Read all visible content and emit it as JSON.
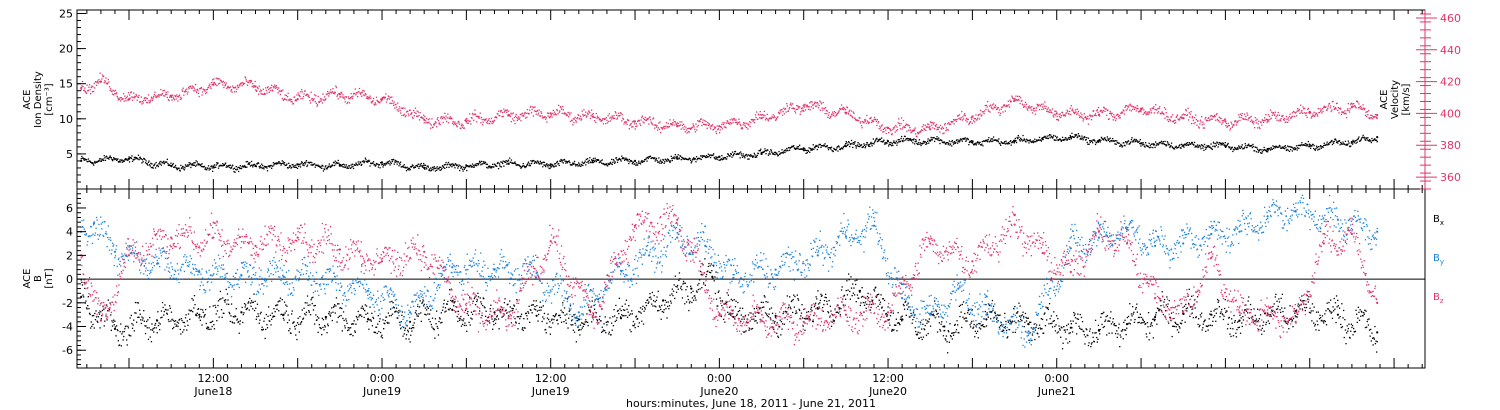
{
  "colors": {
    "black": "#000000",
    "pink": "#e0356a",
    "blue": "#1b83e0"
  },
  "chart_data": [
    {
      "type": "scatter",
      "panel": "top",
      "ylabel_lines": [
        "ACE",
        "Ion Density",
        "[cm⁻³]"
      ],
      "y2label_lines": [
        "ACE",
        "Velocity",
        "[km/s]"
      ],
      "xlim": [
        2.3,
        98.2
      ],
      "ylim": [
        0,
        25.5
      ],
      "y2lim": [
        352.5,
        465
      ],
      "yticks": [
        5,
        10,
        15,
        20,
        25
      ],
      "y2ticks": [
        360,
        380,
        400,
        420,
        440,
        460
      ],
      "series": [
        {
          "color": "#000000",
          "axis": "left",
          "x": [
            2.6,
            6,
            9,
            12,
            15,
            18,
            21,
            24,
            27,
            30,
            33,
            36,
            39,
            42,
            45,
            48,
            51,
            54,
            57,
            60,
            63,
            66,
            69,
            71,
            73,
            75,
            78,
            81,
            84,
            87,
            90,
            93,
            94.8
          ],
          "y": [
            4.0,
            4.3,
            3.3,
            3.2,
            3.3,
            3.5,
            3.3,
            3.8,
            3.0,
            3.3,
            3.6,
            3.5,
            3.8,
            4.0,
            4.3,
            4.6,
            5.0,
            5.8,
            6.1,
            6.8,
            6.9,
            6.7,
            6.8,
            7.1,
            7.4,
            6.9,
            6.5,
            6.2,
            6.1,
            5.7,
            6.1,
            6.7,
            7.4
          ]
        },
        {
          "color": "#e0356a",
          "axis": "right",
          "x": [
            2.6,
            4,
            6,
            9,
            12,
            15,
            18,
            21,
            24,
            27,
            30,
            33,
            36,
            39,
            42,
            45,
            48,
            51,
            54,
            57,
            60,
            63,
            66,
            69,
            72,
            75,
            78,
            81,
            84,
            87,
            90,
            93,
            94.8
          ],
          "y": [
            416,
            420,
            409,
            411,
            418,
            417,
            409,
            412,
            409,
            396,
            395,
            399,
            400,
            398,
            395,
            392,
            392,
            397,
            405,
            400,
            391,
            390,
            398,
            408,
            400,
            399,
            403,
            397,
            395,
            396,
            401,
            404,
            399
          ]
        }
      ]
    },
    {
      "type": "scatter",
      "panel": "bottom",
      "ylabel_lines": [
        "ACE",
        "B",
        "[nT]"
      ],
      "xlim": [
        2.3,
        98.2
      ],
      "ylim": [
        -7.5,
        7.6
      ],
      "yticks": [
        -6,
        -4,
        -2,
        0,
        2,
        4,
        6
      ],
      "zero_line": true,
      "xticks": [
        {
          "x": 12,
          "time": "12:00",
          "date": "June18"
        },
        {
          "x": 24,
          "time": "0:00",
          "date": "June19"
        },
        {
          "x": 36,
          "time": "12:00",
          "date": "June19"
        },
        {
          "x": 48,
          "time": "0:00",
          "date": "June20"
        },
        {
          "x": 60,
          "time": "12:00",
          "date": "June20"
        },
        {
          "x": 72,
          "time": "0:00",
          "date": "June21"
        }
      ],
      "xlabel": "hours:minutes, June 18, 2011 - June 21, 2011",
      "series": [
        {
          "color": "#000000",
          "name_base": "B",
          "name_sub": "x",
          "x": [
            2.6,
            5,
            8,
            11,
            14,
            17,
            20,
            23,
            26,
            29,
            32,
            35,
            38,
            41,
            44,
            46,
            47.5,
            49,
            52,
            55,
            58,
            61,
            64,
            67,
            70,
            73,
            75,
            77,
            79,
            81,
            83,
            85,
            87,
            89,
            92,
            94.8
          ],
          "y": [
            -1.5,
            -4.2,
            -3.5,
            -3.0,
            -2.8,
            -3.0,
            -3.2,
            -3.4,
            -3.6,
            -2.6,
            -2.8,
            -3.1,
            -3.4,
            -3.3,
            -1.8,
            -0.8,
            0.2,
            -3.2,
            -3.1,
            -2.5,
            -1.0,
            -3.4,
            -4.0,
            -3.4,
            -3.8,
            -4.1,
            -4.3,
            -3.8,
            -3.2,
            -2.9,
            -3.0,
            -3.5,
            -3.0,
            -2.7,
            -3.0,
            -4.5
          ]
        },
        {
          "color": "#1b83e0",
          "name_base": "B",
          "name_sub": "y",
          "x": [
            2.6,
            3.5,
            5,
            8,
            11,
            14,
            17,
            20,
            23,
            26,
            29,
            32,
            35,
            38,
            41,
            43,
            45,
            47,
            49,
            52,
            55,
            57,
            59,
            61,
            63,
            65,
            67,
            70,
            73,
            75,
            77,
            79,
            81,
            83,
            85,
            87,
            89,
            92,
            94.8
          ],
          "y": [
            4.0,
            4.7,
            2.3,
            1.3,
            0.6,
            0.3,
            0.2,
            0.0,
            -1.0,
            -2.8,
            1.0,
            0.8,
            0.5,
            -2.8,
            0.7,
            2.0,
            3.5,
            2.8,
            0.1,
            0.8,
            2.0,
            3.6,
            4.5,
            -1.6,
            -3.0,
            -0.8,
            -3.0,
            -4.4,
            2.6,
            3.5,
            4.2,
            2.8,
            3.0,
            3.8,
            4.0,
            5.3,
            5.7,
            5.0,
            4.0
          ]
        },
        {
          "color": "#e0356a",
          "name_base": "B",
          "name_sub": "z",
          "x": [
            2.6,
            4,
            6,
            9,
            12,
            15,
            18,
            21,
            24,
            27,
            30,
            33,
            36,
            39,
            42,
            45,
            48,
            51,
            54,
            57,
            60,
            63,
            66,
            69,
            71,
            73,
            75,
            77,
            79,
            81,
            83,
            85,
            87,
            89,
            91,
            93,
            94.8
          ],
          "y": [
            2.0,
            -3.5,
            2.0,
            3.5,
            3.5,
            2.8,
            3.5,
            2.5,
            1.5,
            2.3,
            -2.5,
            -3.3,
            3.2,
            -3.1,
            4.5,
            5.0,
            -3.0,
            -3.5,
            -3.6,
            -3.0,
            -2.8,
            3.0,
            1.5,
            4.6,
            2.2,
            0.6,
            4.0,
            3.0,
            -1.6,
            -2.8,
            1.8,
            -2.8,
            -3.0,
            -3.6,
            3.0,
            3.8,
            -2.0
          ]
        }
      ]
    }
  ]
}
